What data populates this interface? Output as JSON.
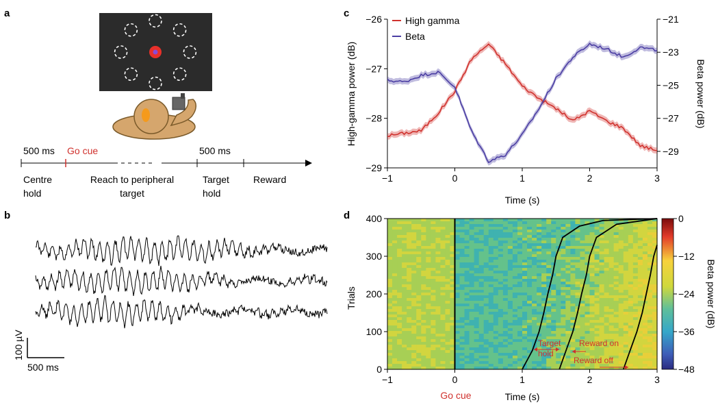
{
  "panel_labels": {
    "a": "a",
    "b": "b",
    "c": "c",
    "d": "d"
  },
  "panel_a": {
    "timeline": {
      "t1": "500 ms",
      "go_cue": "Go cue",
      "t2": "500 ms",
      "phase1_l1": "Centre",
      "phase1_l2": "hold",
      "phase2_l1": "Reach to peripheral",
      "phase2_l2": "target",
      "phase3_l1": "Target",
      "phase3_l2": "hold",
      "phase4": "Reward"
    },
    "colors": {
      "screen": "#2b2b2b",
      "centre_target": "#e8302a",
      "cursor": "#8a4ad6",
      "monkey": "#d5a66d",
      "monkey_stroke": "#7a5a2a",
      "eye": "#f59a1c"
    }
  },
  "panel_b": {
    "scale_voltage": "100 µV",
    "scale_time": "500 ms",
    "traces": 3
  },
  "chart_data": [
    {
      "id": "c",
      "type": "line",
      "x": [
        -1.0,
        -0.75,
        -0.5,
        -0.25,
        0.0,
        0.25,
        0.5,
        0.75,
        1.0,
        1.25,
        1.5,
        1.75,
        2.0,
        2.25,
        2.5,
        2.75,
        3.0
      ],
      "xlabel": "Time (s)",
      "xlim": [
        -1,
        3
      ],
      "xticks": [
        -1,
        0,
        1,
        2,
        3
      ],
      "ylabel": "High-gamma power (dB)",
      "ylim": [
        -29,
        -26
      ],
      "yticks": [
        -29,
        -28,
        -27,
        -26
      ],
      "y2label": "Beta power (dB)",
      "y2lim": [
        -30,
        -21
      ],
      "y2ticks": [
        -29,
        -27,
        -25,
        -23,
        -21
      ],
      "series": [
        {
          "name": "High gamma",
          "axis": "left",
          "color": "#d0312d",
          "values": [
            -28.35,
            -28.3,
            -28.25,
            -27.9,
            -27.45,
            -26.8,
            -26.5,
            -26.9,
            -27.35,
            -27.6,
            -27.8,
            -28.05,
            -27.85,
            -28.05,
            -28.2,
            -28.55,
            -28.65
          ]
        },
        {
          "name": "Beta",
          "axis": "right",
          "color": "#4b3ea3",
          "values": [
            -24.7,
            -24.8,
            -24.4,
            -24.2,
            -25.1,
            -27.8,
            -29.6,
            -29.2,
            -28.0,
            -26.4,
            -24.6,
            -23.3,
            -22.5,
            -22.8,
            -23.3,
            -22.7,
            -22.9
          ]
        }
      ]
    },
    {
      "id": "d",
      "type": "heatmap",
      "xlabel": "Time (s)",
      "xlim": [
        -1,
        3
      ],
      "xticks": [
        -1,
        0,
        1,
        2,
        3
      ],
      "ylabel": "Trials",
      "ylim": [
        0,
        400
      ],
      "yticks": [
        0,
        100,
        200,
        300,
        400
      ],
      "colorbar_label": "Beta power (dB)",
      "colorbar_range": [
        -48,
        0
      ],
      "colorbar_ticks": [
        0,
        -12,
        -24,
        -36,
        -48
      ],
      "event_label": "Go cue",
      "curves": {
        "target_hold": {
          "trials": [
            0,
            50,
            100,
            150,
            200,
            250,
            300,
            350,
            380,
            395,
            400
          ],
          "time": [
            1.0,
            1.15,
            1.25,
            1.32,
            1.38,
            1.45,
            1.5,
            1.6,
            1.85,
            2.2,
            3.0
          ]
        },
        "reward_on": {
          "trials": [
            0,
            50,
            100,
            150,
            200,
            250,
            300,
            350,
            385,
            400
          ],
          "time": [
            1.55,
            1.65,
            1.75,
            1.82,
            1.88,
            1.95,
            2.0,
            2.1,
            2.4,
            3.0
          ]
        },
        "reward_off": {
          "trials": [
            0,
            50,
            100,
            150,
            200,
            250,
            300,
            330
          ],
          "time": [
            2.5,
            2.6,
            2.7,
            2.78,
            2.84,
            2.9,
            2.95,
            3.0
          ]
        }
      },
      "annotations": {
        "target_hold_l1": "Target",
        "target_hold_l2": "hold",
        "reward_on": "Reward on",
        "reward_off": "Reward off"
      }
    }
  ]
}
